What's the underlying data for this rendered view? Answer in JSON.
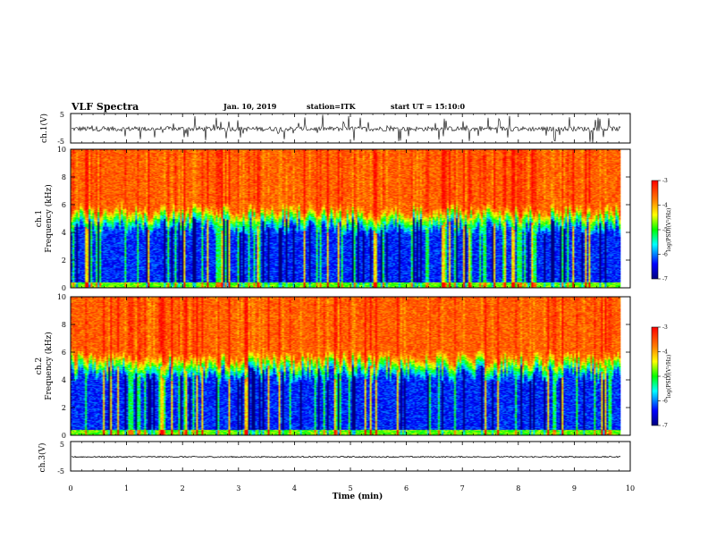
{
  "chart_data": {
    "type": "heatmap",
    "title": "VLF Spectra",
    "date": "Jan. 10, 2019",
    "station": "station=ITK",
    "start_ut": "start UT =   15:10:0",
    "xlabel": "Time  (min)",
    "xlim": [
      0,
      10
    ],
    "xticks": [
      "0",
      "1",
      "2",
      "3",
      "4",
      "5",
      "6",
      "7",
      "8",
      "9",
      "10"
    ],
    "data_end_min": 9.83,
    "waveform_panels": [
      {
        "name": "ch.1",
        "ylabel": "ch.1(V)",
        "ylim": [
          -5,
          5
        ],
        "yticks": [
          "5",
          "-5"
        ],
        "baseline": -0.2,
        "noise": "high"
      },
      {
        "name": "ch.3",
        "ylabel": "ch.3(V)",
        "ylim": [
          -5,
          5
        ],
        "yticks": [
          "5",
          "-5"
        ],
        "baseline": -0.2,
        "noise": "low"
      }
    ],
    "spectrogram_panels": [
      {
        "name": "ch.1",
        "ylabel_top": "ch.1",
        "ylabel": "Frequency  (kHz)",
        "ylim": [
          0,
          10
        ],
        "yticks": [
          "0",
          "2",
          "4",
          "6",
          "8",
          "10"
        ],
        "colorbar": {
          "label": "log(PSD)(V²/Hz)",
          "range": [
            -7,
            -3
          ],
          "ticks": [
            "-3",
            "-4",
            "-5",
            "-6",
            "-7"
          ]
        }
      },
      {
        "name": "ch.2",
        "ylabel_top": "ch.2",
        "ylabel": "Frequency  (kHz)",
        "ylim": [
          0,
          10
        ],
        "yticks": [
          "0",
          "2",
          "4",
          "6",
          "8",
          "10"
        ],
        "colorbar": {
          "label": "log(PSD)(V²/Hz)",
          "range": [
            -7,
            -3
          ],
          "ticks": [
            "-3",
            "-4",
            "-5",
            "-6",
            "-7"
          ]
        }
      }
    ],
    "spectral_structure": {
      "low_band_khz": [
        0,
        4.5
      ],
      "low_band_level": -6.3,
      "high_band_khz": [
        5,
        10
      ],
      "high_band_level": -3.6,
      "transition_khz": 4.5,
      "vertical_bursts": "frequent broadband impulses (sferics) across 0-10 kHz"
    },
    "colors": [
      "#00007f",
      "#0000ff",
      "#00ffff",
      "#00ff00",
      "#ffff00",
      "#ff7f00",
      "#ff0000"
    ]
  }
}
